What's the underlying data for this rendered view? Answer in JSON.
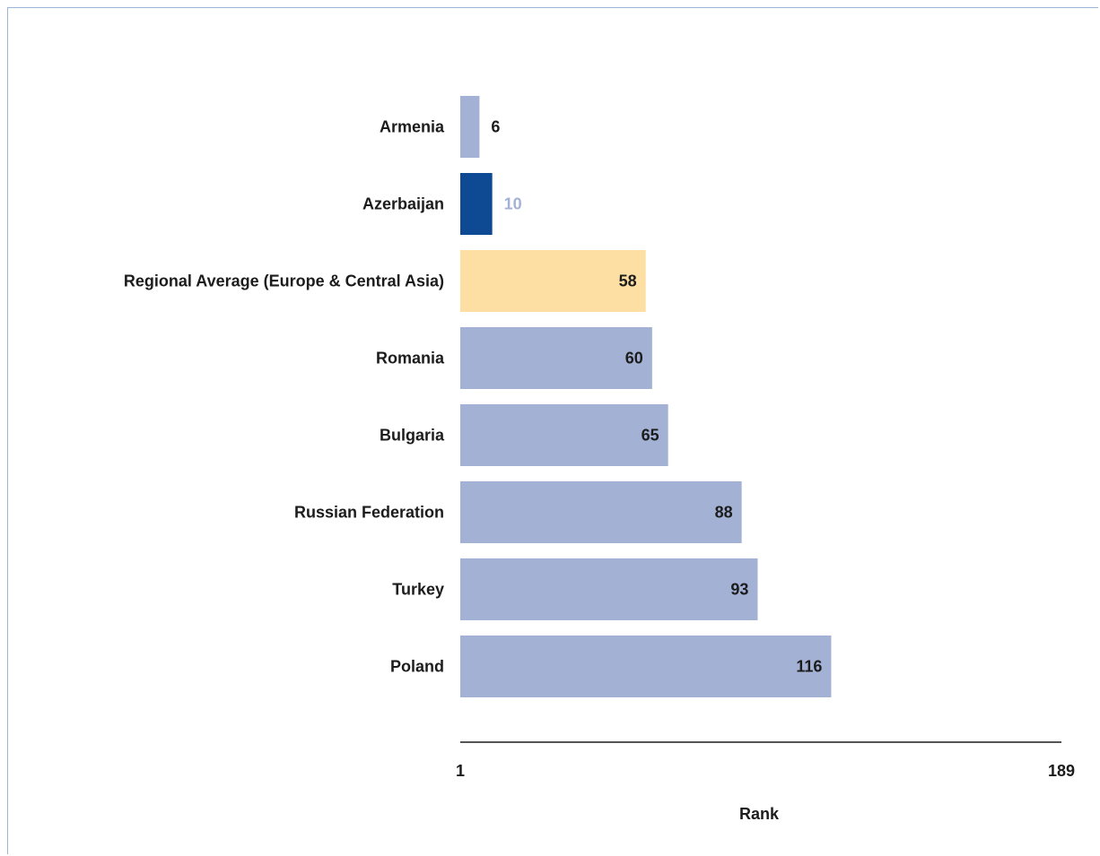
{
  "chart_data": {
    "type": "bar",
    "orientation": "horizontal",
    "categories": [
      "Armenia",
      "Azerbaijan",
      "Regional Average (Europe & Central Asia)",
      "Romania",
      "Bulgaria",
      "Russian Federation",
      "Turkey",
      "Poland"
    ],
    "values": [
      6,
      10,
      58,
      60,
      65,
      88,
      93,
      116
    ],
    "value_labels": [
      "6",
      "10",
      "58",
      "60",
      "65",
      "88",
      "93",
      "116"
    ],
    "bar_colors": [
      "#a3b1d5",
      "#0d4a93",
      "#fddfa3",
      "#a3b1d5",
      "#a3b1d5",
      "#a3b1d5",
      "#a3b1d5",
      "#a3b1d5"
    ],
    "label_colors": [
      "#1c1c1c",
      "#a3b1d5",
      "#1c1c1c",
      "#1c1c1c",
      "#1c1c1c",
      "#1c1c1c",
      "#1c1c1c",
      "#1c1c1c"
    ],
    "xlabel": "Rank",
    "ylabel": "",
    "title": "",
    "xlim": [
      1,
      189
    ],
    "x_tick_labels": [
      "1",
      "189"
    ],
    "grid": false,
    "legend": "none"
  },
  "colors": {
    "text": "#1c1c1c",
    "axis": "#555555",
    "frame": "#9bb5d6"
  }
}
